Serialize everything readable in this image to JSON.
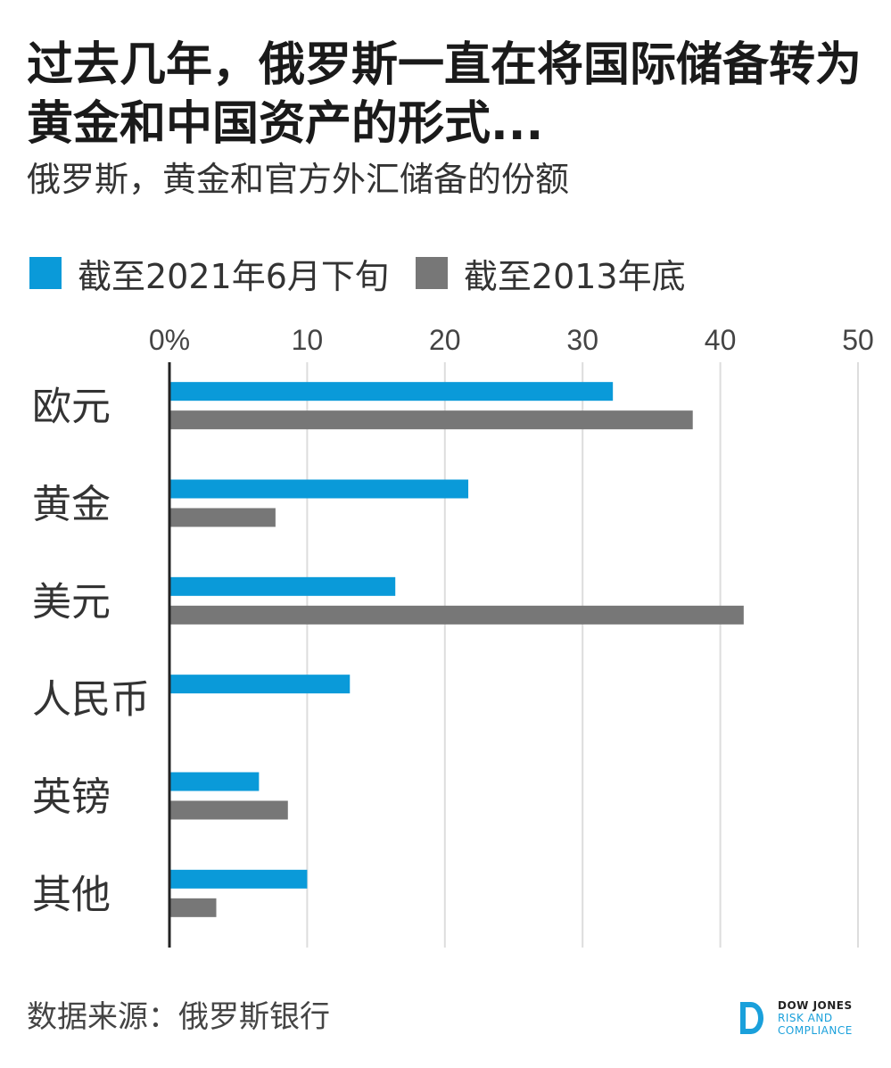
{
  "title": "过去几年，俄罗斯一直在将国际储备转为黄金和中国资产的形式...",
  "subtitle": "俄罗斯，黄金和官方外汇储备的份额",
  "legend": [
    {
      "label": "截至2021年6月下旬",
      "color": "#0a9ad9"
    },
    {
      "label": "截至2013年底",
      "color": "#777777"
    }
  ],
  "chart_data": {
    "type": "bar",
    "orientation": "horizontal",
    "categories": [
      "欧元",
      "黄金",
      "美元",
      "人民币",
      "英镑",
      "其他"
    ],
    "series": [
      {
        "name": "截至2021年6月下旬",
        "color": "#0a9ad9",
        "values": [
          32.2,
          21.7,
          16.4,
          13.1,
          6.5,
          10.0
        ]
      },
      {
        "name": "截至2013年底",
        "color": "#777777",
        "values": [
          38.0,
          7.7,
          41.7,
          0,
          8.6,
          3.4
        ]
      }
    ],
    "xticks": [
      "0%",
      "10",
      "20",
      "30",
      "40",
      "50"
    ],
    "xlim": [
      0,
      50
    ],
    "grid": true,
    "legend_position": "top"
  },
  "footer": {
    "source": "数据来源：俄罗斯银行",
    "logo_line1": "DOW JONES",
    "logo_line2": "RISK AND",
    "logo_line3": "COMPLIANCE"
  }
}
